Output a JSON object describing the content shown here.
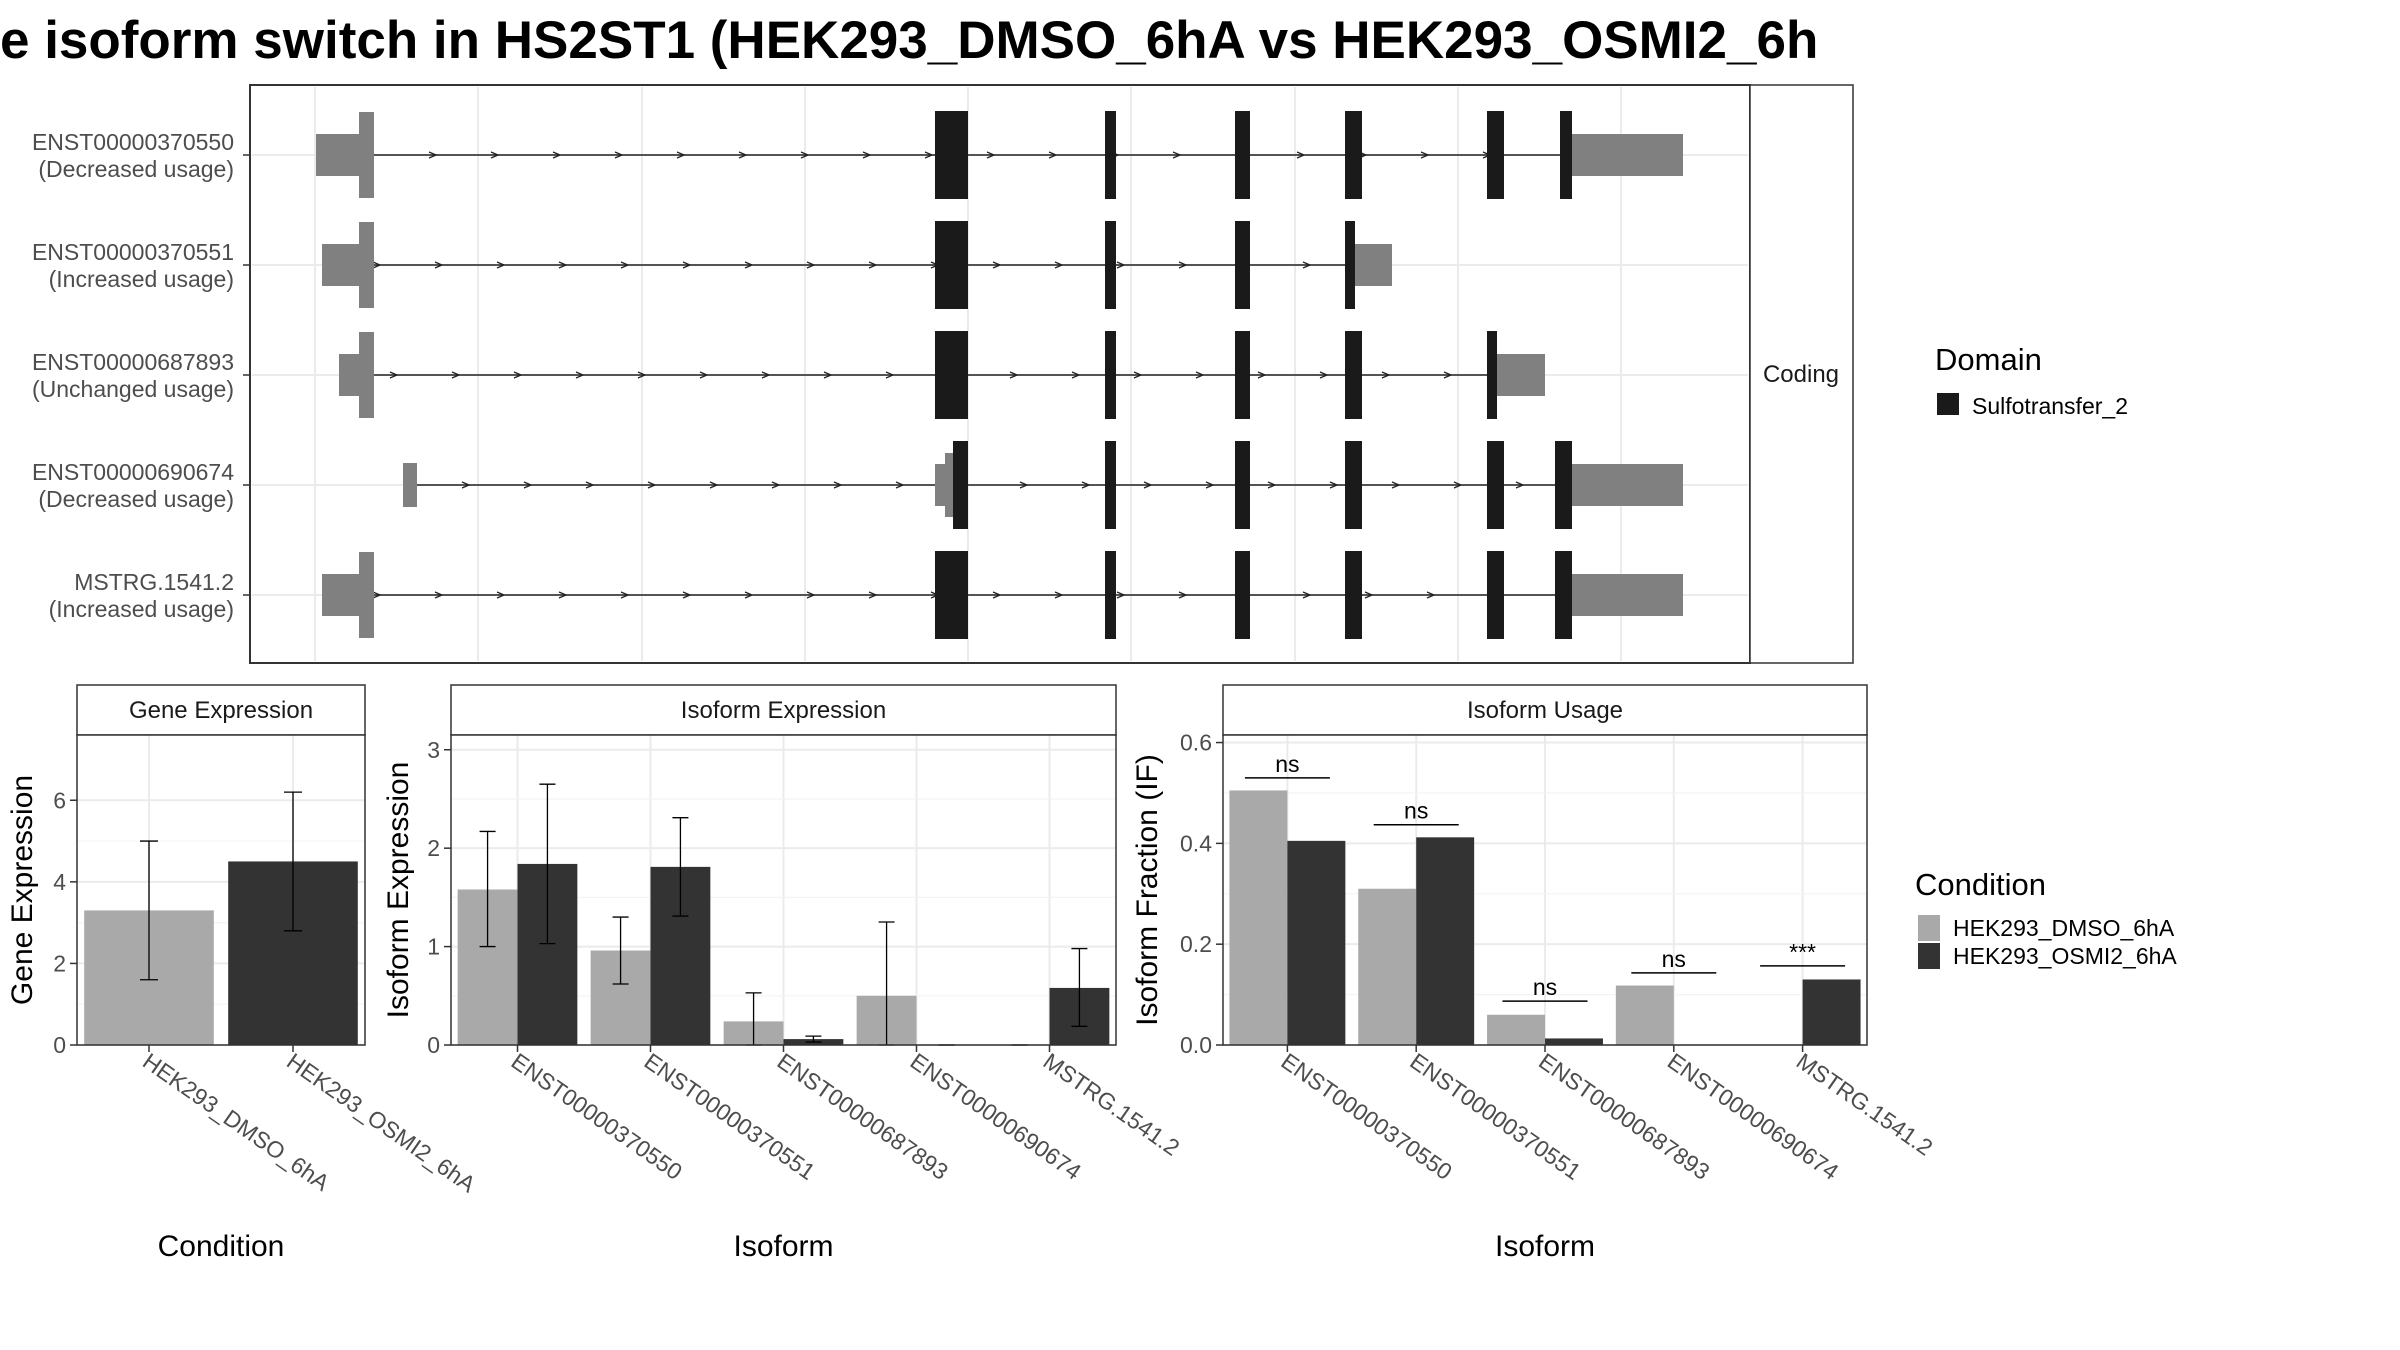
{
  "title": "e isoform switch in HS2ST1 (HEK293_DMSO_6hA vs HEK293_OSMI2_6h",
  "colors": {
    "dmso": "#a9a9a9",
    "osmi2": "#333333",
    "utr": "#808080",
    "domain": "#1a1a1a",
    "grid": "#ebebeb",
    "strip": "#ffffff"
  },
  "structure": {
    "facet_label": "Coding",
    "isoforms": [
      {
        "id": "ENST00000370550",
        "note": "(Decreased usage)"
      },
      {
        "id": "ENST00000370551",
        "note": "(Increased usage)"
      },
      {
        "id": "ENST00000687893",
        "note": "(Unchanged usage)"
      },
      {
        "id": "ENST00000690674",
        "note": "(Decreased usage)"
      },
      {
        "id": "MSTRG.1541.2",
        "note": "(Increased usage)"
      }
    ]
  },
  "legends": {
    "domain_title": "Domain",
    "domain_items": [
      "Sulfotransfer_2"
    ],
    "condition_title": "Condition",
    "condition_items": [
      "HEK293_DMSO_6hA",
      "HEK293_OSMI2_6hA"
    ]
  },
  "chart_data": [
    {
      "type": "bar",
      "title": "Gene Expression",
      "xlabel": "Condition",
      "ylabel": "Gene Expression",
      "ylim": [
        0,
        7.6
      ],
      "yticks": [
        0,
        2,
        4,
        6
      ],
      "categories": [
        "HEK293_DMSO_6hA",
        "HEK293_OSMI2_6hA"
      ],
      "values": [
        3.3,
        4.5
      ],
      "err_low": [
        1.6,
        2.8
      ],
      "err_high": [
        5.0,
        6.2
      ]
    },
    {
      "type": "bar",
      "title": "Isoform Expression",
      "xlabel": "Isoform",
      "ylabel": "Isoform Expression",
      "ylim": [
        0,
        3.15
      ],
      "yticks": [
        0,
        1,
        2,
        3
      ],
      "categories": [
        "ENST00000370550",
        "ENST00000370551",
        "ENST00000687893",
        "ENST00000690674",
        "MSTRG.1541.2"
      ],
      "series": [
        {
          "name": "HEK293_DMSO_6hA",
          "values": [
            1.58,
            0.96,
            0.24,
            0.5,
            0.0
          ],
          "err_low": [
            1.0,
            0.62,
            0.0,
            0.0,
            0.0
          ],
          "err_high": [
            2.17,
            1.3,
            0.53,
            1.25,
            0.0
          ]
        },
        {
          "name": "HEK293_OSMI2_6hA",
          "values": [
            1.84,
            1.81,
            0.06,
            0.0,
            0.58
          ],
          "err_low": [
            1.03,
            1.31,
            0.03,
            0.0,
            0.19
          ],
          "err_high": [
            2.65,
            2.31,
            0.09,
            0.0,
            0.98
          ]
        }
      ]
    },
    {
      "type": "bar",
      "title": "Isoform Usage",
      "xlabel": "Isoform",
      "ylabel": "Isoform Fraction (IF)",
      "ylim": [
        0,
        0.615
      ],
      "yticks": [
        0.0,
        0.2,
        0.4,
        0.6
      ],
      "ytick_labels": [
        "0.0",
        "0.2",
        "0.4",
        "0.6"
      ],
      "categories": [
        "ENST00000370550",
        "ENST00000370551",
        "ENST00000687893",
        "ENST00000690674",
        "MSTRG.1541.2"
      ],
      "series": [
        {
          "name": "HEK293_DMSO_6hA",
          "values": [
            0.505,
            0.31,
            0.06,
            0.118,
            0.0
          ]
        },
        {
          "name": "HEK293_OSMI2_6hA",
          "values": [
            0.405,
            0.412,
            0.013,
            0.0,
            0.13
          ]
        }
      ],
      "annotations": [
        {
          "label": "ns",
          "y": 0.53
        },
        {
          "label": "ns",
          "y": 0.437
        },
        {
          "label": "ns",
          "y": 0.087
        },
        {
          "label": "ns",
          "y": 0.143
        },
        {
          "label": "***",
          "y": 0.157
        }
      ]
    }
  ]
}
